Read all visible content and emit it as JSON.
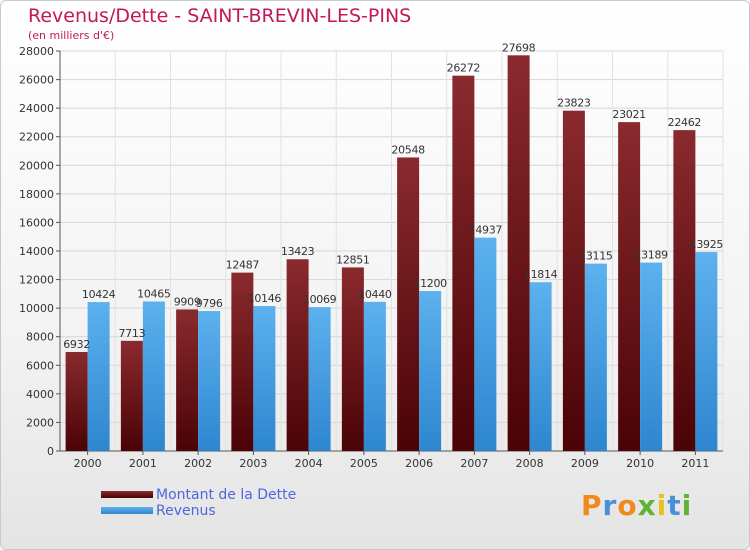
{
  "header": {
    "title": "Revenus/Dette - SAINT-BREVIN-LES-PINS",
    "subtitle": "(en milliers d'€)"
  },
  "legend": {
    "items": [
      {
        "label": "Montant de la Dette",
        "color": "#6b0f14"
      },
      {
        "label": "Revenus",
        "color": "#4aa3e6"
      }
    ]
  },
  "logo": {
    "letters": [
      "P",
      "r",
      "o",
      "x",
      "i",
      "t",
      "i"
    ],
    "colors": [
      "#f08a1c",
      "#4a90d9",
      "#f08a1c",
      "#5fb336",
      "#e8c020",
      "#4a90d9",
      "#5fb336"
    ]
  },
  "chart_data": {
    "type": "bar",
    "title": "Revenus/Dette - SAINT-BREVIN-LES-PINS",
    "ylabel": "(en milliers d'€)",
    "xlabel": "",
    "categories": [
      "2000",
      "2001",
      "2002",
      "2003",
      "2004",
      "2005",
      "2006",
      "2007",
      "2008",
      "2009",
      "2010",
      "2011"
    ],
    "series": [
      {
        "name": "Montant de la Dette",
        "color": "#6b0f14",
        "values": [
          6932,
          7713,
          9909,
          12487,
          13423,
          12851,
          20548,
          26272,
          27698,
          23823,
          23021,
          22462
        ]
      },
      {
        "name": "Revenus",
        "color": "#4aa3e6",
        "values": [
          10424,
          10465,
          9796,
          10146,
          10069,
          10440,
          11200,
          14937,
          11814,
          13115,
          13189,
          13925
        ]
      }
    ],
    "ylim": [
      0,
      28000
    ],
    "yticks": [
      "0",
      "2000",
      "4000",
      "6000",
      "8000",
      "10000",
      "12000",
      "14000",
      "16000",
      "18000",
      "20000",
      "22000",
      "24000",
      "26000",
      "28000"
    ],
    "grid": true,
    "legend_position": "bottom-left"
  }
}
